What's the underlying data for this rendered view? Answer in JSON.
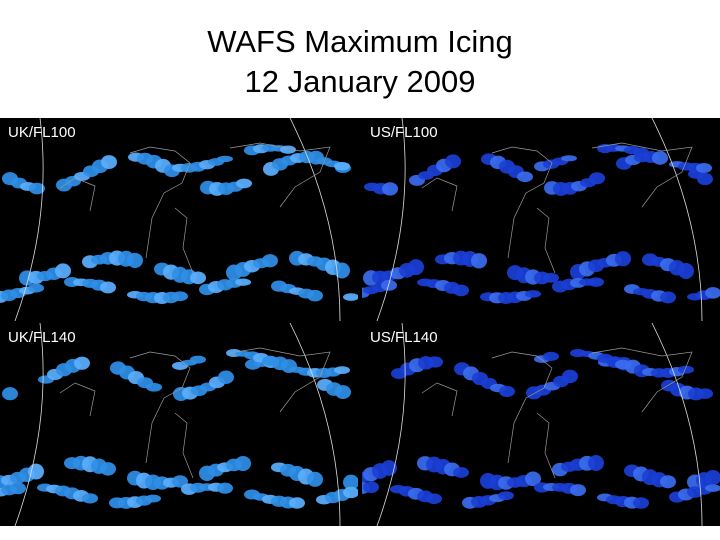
{
  "slide": {
    "title_line1": "WAFS Maximum Icing",
    "title_line2": "12 January 2009"
  },
  "panels": [
    {
      "label": "UK/FL100",
      "palette": "light-blue"
    },
    {
      "label": "US/FL100",
      "palette": "dark-blue"
    },
    {
      "label": "UK/FL140",
      "palette": "light-blue"
    },
    {
      "label": "US/FL140",
      "palette": "dark-blue"
    }
  ],
  "colors": {
    "background": "#000000",
    "uk_icing": "#2f8fe8",
    "uk_icing_light": "#5ab0ff",
    "us_icing": "#1a3fd6",
    "us_icing_light": "#3b6cf0",
    "coastline": "#9a9a9a",
    "frame": "#dddddd"
  }
}
